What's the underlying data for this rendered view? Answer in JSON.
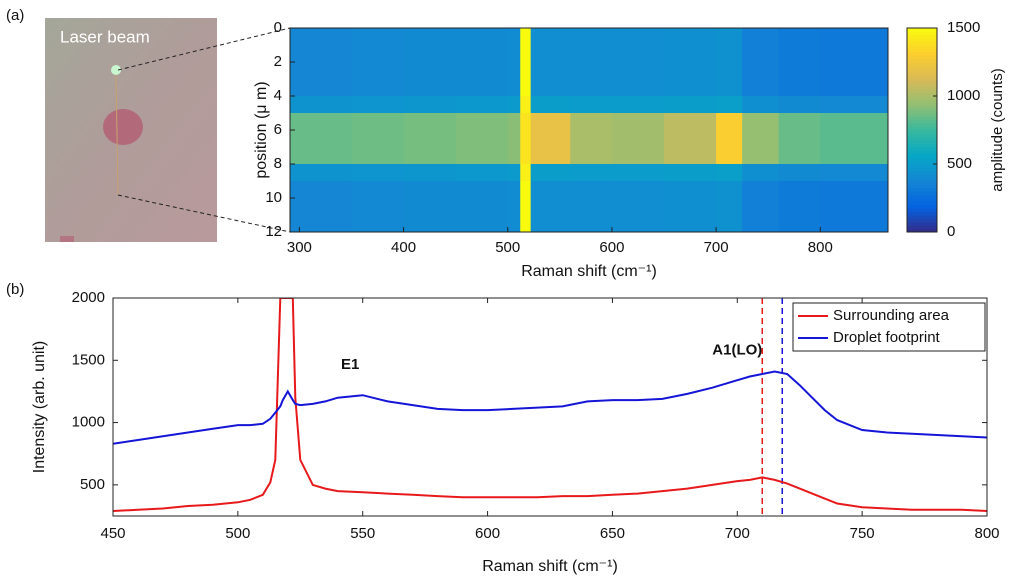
{
  "panel_labels": [
    "(a)",
    "(b)"
  ],
  "photo_label": "Laser beam",
  "chart_data": [
    {
      "type": "heatmap",
      "xlabel": "Raman shift (cm⁻¹)",
      "ylabel": "position (μ m)",
      "x_edges": [
        291,
        350,
        400,
        450,
        500,
        512,
        522,
        560,
        600,
        650,
        700,
        725,
        760,
        800,
        865
      ],
      "y_edges": [
        0,
        1,
        2,
        3,
        4,
        5,
        6,
        7,
        8,
        9,
        10,
        11,
        12
      ],
      "values": [
        [
          380,
          390,
          400,
          400,
          410,
          1500,
          420,
          420,
          420,
          430,
          440,
          350,
          320,
          310
        ],
        [
          380,
          390,
          400,
          400,
          410,
          1500,
          420,
          420,
          420,
          430,
          440,
          350,
          320,
          310
        ],
        [
          380,
          390,
          400,
          400,
          410,
          1500,
          420,
          420,
          420,
          430,
          440,
          350,
          320,
          310
        ],
        [
          380,
          390,
          400,
          400,
          410,
          1500,
          420,
          420,
          420,
          430,
          440,
          350,
          320,
          310
        ],
        [
          450,
          460,
          470,
          480,
          490,
          1450,
          510,
          500,
          500,
          510,
          520,
          430,
          400,
          390
        ],
        [
          850,
          860,
          880,
          900,
          920,
          1400,
          1200,
          1000,
          980,
          1050,
          1300,
          950,
          850,
          820
        ],
        [
          850,
          860,
          880,
          900,
          920,
          1400,
          1200,
          1000,
          980,
          1050,
          1300,
          950,
          850,
          820
        ],
        [
          850,
          860,
          880,
          900,
          920,
          1400,
          1200,
          1000,
          980,
          1050,
          1300,
          950,
          850,
          820
        ],
        [
          450,
          460,
          470,
          480,
          490,
          1450,
          510,
          500,
          500,
          510,
          520,
          430,
          400,
          390
        ],
        [
          380,
          390,
          400,
          400,
          410,
          1500,
          420,
          420,
          420,
          430,
          440,
          350,
          320,
          310
        ],
        [
          380,
          390,
          400,
          400,
          410,
          1500,
          420,
          420,
          420,
          430,
          440,
          350,
          320,
          310
        ],
        [
          380,
          390,
          400,
          400,
          410,
          1500,
          420,
          420,
          420,
          430,
          440,
          350,
          320,
          310
        ]
      ],
      "xlim": [
        291,
        865
      ],
      "ylim": [
        0,
        12
      ],
      "y_reversed": true,
      "xticks": [
        300,
        400,
        500,
        600,
        700,
        800
      ],
      "yticks": [
        0,
        2,
        4,
        6,
        8,
        10,
        12
      ],
      "colorbar": {
        "label": "amplitude (counts)",
        "lim": [
          0,
          1500
        ],
        "ticks": [
          0,
          500,
          1000,
          1500
        ]
      },
      "colormap": [
        "#352a87",
        "#0363e1",
        "#1485d4",
        "#06a7c6",
        "#38b99e",
        "#92bf73",
        "#d9ba56",
        "#fcce2e",
        "#f9fb0e"
      ]
    },
    {
      "type": "line",
      "xlabel": "Raman shift (cm⁻¹)",
      "ylabel": "Intensity (arb. unit)",
      "x": [
        450,
        460,
        470,
        480,
        490,
        500,
        505,
        510,
        513,
        515,
        517,
        518,
        520,
        522,
        523,
        525,
        530,
        535,
        540,
        550,
        560,
        570,
        580,
        590,
        600,
        610,
        620,
        630,
        640,
        650,
        660,
        670,
        680,
        690,
        700,
        705,
        710,
        715,
        720,
        725,
        730,
        735,
        740,
        750,
        760,
        770,
        780,
        790,
        800
      ],
      "series": [
        {
          "name": "Surrounding area",
          "color": "#e8191b",
          "values": [
            290,
            300,
            310,
            330,
            340,
            360,
            380,
            420,
            520,
            700,
            2000,
            2000,
            2000,
            2000,
            1200,
            700,
            500,
            470,
            450,
            440,
            430,
            420,
            410,
            400,
            400,
            400,
            400,
            410,
            410,
            420,
            430,
            450,
            470,
            500,
            530,
            540,
            560,
            540,
            510,
            470,
            430,
            390,
            350,
            320,
            310,
            300,
            300,
            300,
            290
          ]
        },
        {
          "name": "Droplet footprint",
          "color": "#1515d8",
          "values": [
            830,
            860,
            890,
            920,
            950,
            980,
            980,
            990,
            1030,
            1080,
            1130,
            1180,
            1250,
            1180,
            1150,
            1140,
            1150,
            1170,
            1200,
            1220,
            1170,
            1140,
            1110,
            1100,
            1100,
            1110,
            1120,
            1130,
            1170,
            1180,
            1180,
            1190,
            1230,
            1280,
            1340,
            1370,
            1390,
            1410,
            1390,
            1300,
            1200,
            1100,
            1020,
            940,
            920,
            910,
            900,
            890,
            880
          ]
        }
      ],
      "vlines": [
        {
          "x": 710,
          "color": "#e8191b"
        },
        {
          "x": 718,
          "color": "#1515d8"
        }
      ],
      "annotations": [
        "E1",
        "A1(LO)"
      ],
      "xlim": [
        450,
        800
      ],
      "ylim": [
        250,
        2000
      ],
      "xticks": [
        450,
        500,
        550,
        600,
        650,
        700,
        750,
        800
      ],
      "yticks": [
        500,
        1000,
        1500,
        2000
      ],
      "legend": "upper right"
    }
  ]
}
